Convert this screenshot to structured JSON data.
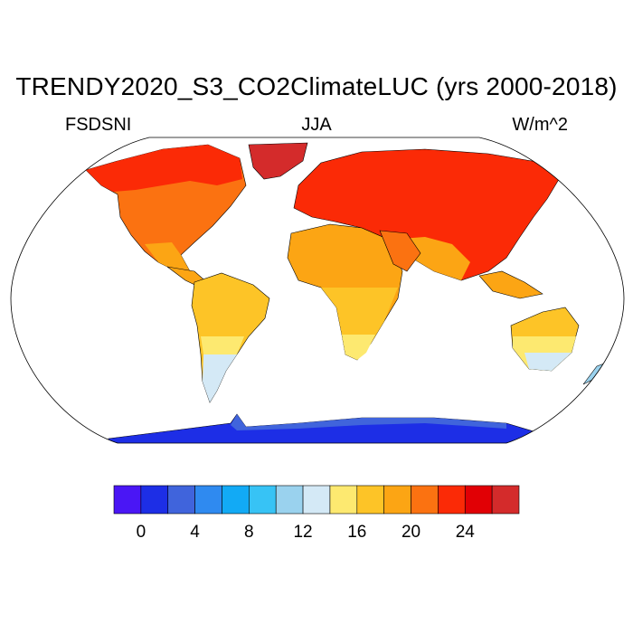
{
  "title": "TRENDY2020_S3_CO2ClimateLUC (yrs 2000-2018)",
  "subtitle_left": "FSDSNI",
  "subtitle_center": "JJA",
  "subtitle_right": "W/m^2",
  "colorbar": {
    "colors": [
      "#4a16f5",
      "#1d2ee6",
      "#4064dc",
      "#2f8af0",
      "#12aaf5",
      "#37c3f5",
      "#9ad2ee",
      "#d4e9f6",
      "#fde970",
      "#fdc427",
      "#fca514",
      "#fb7211",
      "#fb2a06",
      "#e10005",
      "#d42b2b"
    ],
    "ticks": [
      "0",
      "4",
      "8",
      "12",
      "16",
      "20",
      "24"
    ],
    "tick_boundaries": [
      1,
      3,
      5,
      7,
      9,
      11,
      13
    ]
  }
}
